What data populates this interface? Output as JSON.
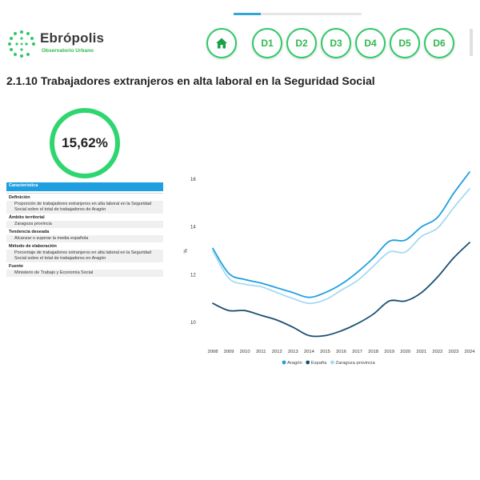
{
  "header": {
    "logo_name": "Ebrópolis",
    "logo_subtitle": "Observatorio Urbano",
    "home_icon": "home-icon",
    "nav": [
      "D1",
      "D2",
      "D3",
      "D4",
      "D5",
      "D6"
    ]
  },
  "page": {
    "title": "2.1.10 Trabajadores extranjeros en alta laboral en la Seguridad Social"
  },
  "kpi": {
    "value": "15,62%"
  },
  "info": {
    "header": "Característica",
    "sections": [
      {
        "label": "Definición",
        "value": "Proporción de trabajadores extranjeros en alta laboral en la Seguridad Social sobre el total de trabajadores de Aragón"
      },
      {
        "label": "Ámbito territorial",
        "value": "Zaragoza provincia"
      },
      {
        "label": "Tendencia deseada",
        "value": "Alcanzar o superar la media española"
      },
      {
        "label": "Método de elaboración",
        "value": "Porcentaje de trabajadores extranjeros en alta laboral en la Seguridad Social sobre el total de trabajadores en Aragón"
      },
      {
        "label": "Fuente",
        "value": "Ministerio de Trabajo y Economía Social"
      }
    ]
  },
  "colors": {
    "accent_green": "#2fc866",
    "header_blue": "#1f9fe0"
  },
  "chart_data": {
    "type": "line",
    "title": "",
    "xlabel": "",
    "ylabel": "%",
    "x": [
      "2008",
      "2009",
      "2010",
      "2011",
      "2012",
      "2013",
      "2014",
      "2015",
      "2016",
      "2017",
      "2018",
      "2019",
      "2020",
      "2021",
      "2022",
      "2023",
      "2024"
    ],
    "yticks": [
      10,
      12,
      14,
      16
    ],
    "ylim": [
      9.2,
      16.6
    ],
    "grid": false,
    "legend_position": "bottom-center",
    "series": [
      {
        "name": "Aragón",
        "color": "#1f9fe0",
        "values": [
          13.1,
          12.05,
          11.8,
          11.65,
          11.45,
          11.25,
          11.05,
          11.25,
          11.6,
          12.1,
          12.7,
          13.4,
          13.45,
          14.0,
          14.4,
          15.4,
          16.3
        ]
      },
      {
        "name": "España",
        "color": "#1a4f72",
        "values": [
          10.8,
          10.5,
          10.5,
          10.3,
          10.1,
          9.8,
          9.45,
          9.45,
          9.65,
          9.95,
          10.35,
          10.9,
          10.9,
          11.25,
          11.9,
          12.7,
          13.35
        ]
      },
      {
        "name": "Zaragoza provincia",
        "color": "#a6daf2",
        "values": [
          13.0,
          11.85,
          11.6,
          11.5,
          11.25,
          11.0,
          10.8,
          10.95,
          11.35,
          11.75,
          12.35,
          12.95,
          12.95,
          13.6,
          13.95,
          14.8,
          15.6
        ]
      }
    ]
  }
}
